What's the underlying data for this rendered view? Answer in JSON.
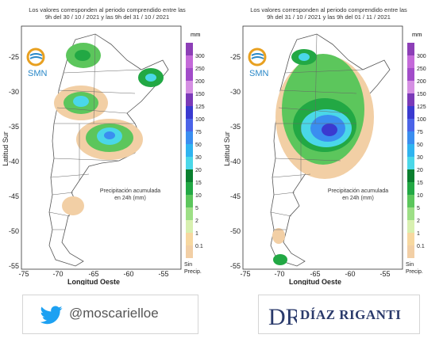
{
  "colors": {
    "background": "#ffffff",
    "ocean": "#ffffff",
    "land": "#ffffff",
    "border": "#555555",
    "scale": [
      "#f2cfa5",
      "#f7d8a0",
      "#d8f0b0",
      "#9ddf86",
      "#5cc65c",
      "#22a844",
      "#0a7f2e",
      "#4ad7e8",
      "#2fb4f0",
      "#3a8ef0",
      "#4b64e8",
      "#3a3ad0",
      "#7b3ab8",
      "#a24cc9",
      "#c46ad9",
      "#d58fe3",
      "#8d3fb7"
    ]
  },
  "panels": [
    {
      "id": "left",
      "title_line1": "Los valores corresponden al periodo comprendido entre las",
      "title_line2": "9h del 30 / 10 / 2021  y las 9h del 31 / 10 / 2021",
      "logo": "SMN",
      "ylabel": "Latitud Sur",
      "xlabel": "Longitud Oeste",
      "annotation_line1": "Precipitación acumulada",
      "annotation_line2": "en 24h (mm)",
      "legend_unit": "mm",
      "legend_labels": [
        "300",
        "250",
        "200",
        "150",
        "125",
        "100",
        "75",
        "50",
        "30",
        "20",
        "15",
        "10",
        "5",
        "2",
        "1",
        "0.1"
      ],
      "legend_nodata": "Sin\nPrecip."
    },
    {
      "id": "right",
      "title_line1": "Los valores corresponden al periodo comprendido entre las",
      "title_line2": "9h del 31 / 10 / 2021  y las 9h del 01 / 11 / 2021",
      "logo": "SMN",
      "ylabel": "Latitud Sur",
      "xlabel": "Longitud Oeste",
      "annotation_line1": "Precipitación acumulada",
      "annotation_line2": "en 24h (mm)",
      "legend_unit": "mm",
      "legend_labels": [
        "300",
        "250",
        "200",
        "150",
        "125",
        "100",
        "75",
        "50",
        "30",
        "20",
        "15",
        "10",
        "5",
        "2",
        "1",
        "0.1"
      ],
      "legend_nodata": "Sin\nPrecip."
    }
  ],
  "axes": {
    "x_ticks": [
      "-75",
      "-70",
      "-65",
      "-60",
      "-55"
    ],
    "y_ticks": [
      "-25",
      "-30",
      "-35",
      "-40",
      "-45",
      "-50",
      "-55"
    ]
  },
  "footer": {
    "twitter_handle": "@moscarielloe",
    "twitter_icon": "twitter-bird-icon",
    "brand_name": "DÍAZ RIGANTI",
    "brand_monogram": "DR"
  }
}
